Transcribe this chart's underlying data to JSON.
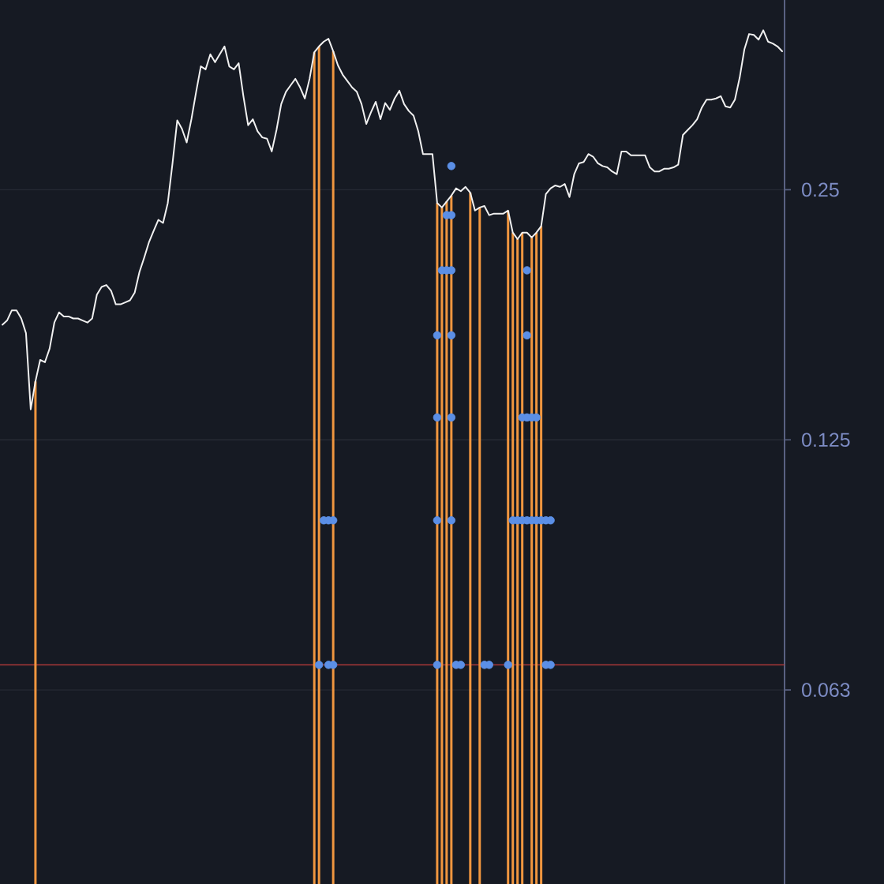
{
  "chart_data": {
    "type": "line",
    "categories": [
      null,
      null,
      null,
      null,
      null,
      null,
      null,
      null,
      null,
      null,
      null,
      null,
      null,
      null,
      null,
      null,
      null,
      null,
      null,
      null,
      null,
      null,
      null,
      null,
      null,
      null,
      null,
      null,
      null,
      null,
      null,
      null,
      null,
      null,
      null,
      null,
      null,
      null,
      null,
      null,
      null,
      null,
      null,
      null,
      null,
      null,
      null,
      null,
      null,
      null,
      null,
      null,
      null,
      null,
      null,
      null,
      null,
      null,
      null,
      null,
      null,
      null,
      null,
      null,
      null,
      null,
      null,
      null,
      null,
      null,
      null,
      null,
      null,
      null,
      null,
      null,
      null,
      null,
      null,
      null,
      null,
      null,
      null,
      null,
      null,
      null,
      null,
      null,
      null,
      null,
      null,
      null,
      null,
      null,
      null,
      null,
      null,
      null,
      null,
      null,
      null,
      null,
      null,
      null,
      null,
      null,
      null,
      null,
      null,
      null,
      null,
      null,
      null,
      null,
      null,
      null,
      null,
      null,
      null,
      null,
      null,
      null,
      null,
      null,
      null,
      null,
      null,
      null,
      null,
      null,
      null,
      null,
      null,
      null,
      null,
      null,
      null,
      null,
      null,
      null,
      null,
      null,
      null,
      null,
      null,
      null,
      null,
      null,
      null,
      null,
      null,
      null,
      null,
      null,
      null,
      null,
      null,
      null,
      null,
      null,
      null,
      null,
      null,
      null,
      null,
      null
    ],
    "series": [
      {
        "type": "bar",
        "color": "#f0963f",
        "values": [
          null,
          null,
          null,
          null,
          null,
          null,
          null,
          0.147,
          null,
          null,
          null,
          null,
          null,
          null,
          null,
          null,
          null,
          null,
          null,
          null,
          null,
          null,
          null,
          null,
          null,
          null,
          null,
          null,
          null,
          null,
          null,
          null,
          null,
          null,
          null,
          null,
          null,
          null,
          null,
          null,
          null,
          null,
          null,
          null,
          null,
          null,
          null,
          null,
          null,
          null,
          null,
          null,
          null,
          null,
          null,
          null,
          null,
          null,
          null,
          null,
          null,
          null,
          null,
          null,
          null,
          null,
          0.366,
          0.372,
          null,
          null,
          0.367,
          null,
          null,
          null,
          null,
          null,
          null,
          null,
          null,
          null,
          null,
          null,
          null,
          null,
          null,
          null,
          null,
          null,
          null,
          null,
          null,
          null,
          0.241,
          0.238,
          0.242,
          0.246,
          null,
          null,
          null,
          0.248,
          null,
          0.238,
          null,
          null,
          null,
          null,
          null,
          0.236,
          0.222,
          0.218,
          0.222,
          null,
          0.219,
          0.222,
          0.226,
          null,
          null,
          null,
          null,
          null,
          null,
          null,
          null,
          null,
          null,
          null,
          null,
          null,
          null,
          null,
          null,
          null,
          null,
          null,
          null,
          null,
          null,
          null,
          null,
          null,
          null,
          null,
          null,
          null,
          null,
          null,
          null,
          null,
          null,
          null,
          null,
          null,
          null,
          null,
          null,
          null,
          null,
          null,
          null,
          null,
          null,
          null,
          null,
          null,
          null,
          null
        ]
      },
      {
        "color": "#f0f0f0",
        "values": [
          0.172,
          0.174,
          0.179,
          0.179,
          0.175,
          0.168,
          0.136,
          0.147,
          0.156,
          0.155,
          0.161,
          0.173,
          0.178,
          0.176,
          0.176,
          0.175,
          0.175,
          0.174,
          0.173,
          0.175,
          0.187,
          0.191,
          0.192,
          0.189,
          0.182,
          0.182,
          0.183,
          0.184,
          0.188,
          0.199,
          0.207,
          0.216,
          0.223,
          0.23,
          0.228,
          0.241,
          0.269,
          0.303,
          0.296,
          0.285,
          0.304,
          0.328,
          0.352,
          0.349,
          0.364,
          0.356,
          0.364,
          0.372,
          0.352,
          0.349,
          0.355,
          0.324,
          0.299,
          0.304,
          0.294,
          0.289,
          0.288,
          0.278,
          0.295,
          0.317,
          0.328,
          0.334,
          0.34,
          0.332,
          0.322,
          0.34,
          0.366,
          0.372,
          0.377,
          0.38,
          0.367,
          0.353,
          0.344,
          0.338,
          0.332,
          0.328,
          0.317,
          0.3,
          0.31,
          0.319,
          0.304,
          0.318,
          0.312,
          0.322,
          0.329,
          0.317,
          0.311,
          0.307,
          0.294,
          0.276,
          0.276,
          0.276,
          0.241,
          0.238,
          0.242,
          0.246,
          0.251,
          0.249,
          0.252,
          0.248,
          0.236,
          0.238,
          0.239,
          0.233,
          0.234,
          0.234,
          0.234,
          0.236,
          0.222,
          0.218,
          0.222,
          0.222,
          0.219,
          0.222,
          0.226,
          0.247,
          0.251,
          0.253,
          0.252,
          0.254,
          0.245,
          0.261,
          0.269,
          0.27,
          0.276,
          0.274,
          0.269,
          0.267,
          0.266,
          0.263,
          0.261,
          0.278,
          0.278,
          0.275,
          0.275,
          0.275,
          0.275,
          0.266,
          0.263,
          0.263,
          0.265,
          0.265,
          0.266,
          0.268,
          0.291,
          0.295,
          0.299,
          0.304,
          0.314,
          0.321,
          0.321,
          0.322,
          0.324,
          0.315,
          0.314,
          0.321,
          0.341,
          0.369,
          0.385,
          0.384,
          0.379,
          0.389,
          0.377,
          0.375,
          0.372,
          0.367
        ]
      },
      {
        "type": "scatter",
        "color": "#5b8fe6",
        "marker": "circle",
        "values": [
          null,
          null,
          null,
          null,
          null,
          null,
          null,
          null,
          null,
          null,
          null,
          null,
          null,
          null,
          null,
          null,
          null,
          null,
          null,
          null,
          null,
          null,
          null,
          null,
          null,
          null,
          null,
          null,
          null,
          null,
          null,
          null,
          null,
          null,
          null,
          null,
          null,
          null,
          null,
          null,
          null,
          null,
          null,
          null,
          null,
          null,
          null,
          null,
          null,
          null,
          null,
          null,
          null,
          null,
          null,
          null,
          null,
          null,
          null,
          null,
          null,
          null,
          null,
          null,
          null,
          null,
          null,
          null,
          null,
          null,
          null,
          null,
          null,
          null,
          null,
          null,
          null,
          null,
          null,
          null,
          null,
          null,
          null,
          null,
          null,
          null,
          null,
          null,
          null,
          null,
          null,
          null,
          null,
          null,
          null,
          0.267,
          null,
          null,
          null,
          null,
          null,
          null,
          null,
          null,
          null,
          null,
          null,
          null,
          null,
          null,
          null,
          null,
          null,
          null,
          null,
          null,
          null,
          null,
          null,
          null,
          null,
          null,
          null,
          null,
          null,
          null,
          null,
          null,
          null,
          null,
          null,
          null,
          null,
          null,
          null,
          null,
          null,
          null,
          null,
          null,
          null,
          null,
          null,
          null,
          null,
          null,
          null,
          null,
          null,
          null,
          null,
          null,
          null,
          null,
          null,
          null,
          null,
          null,
          null,
          null,
          null,
          null,
          null,
          null,
          null,
          null
        ]
      },
      {
        "type": "scatter",
        "color": "#5b8fe6",
        "marker": "circle",
        "values": [
          null,
          null,
          null,
          null,
          null,
          null,
          null,
          null,
          null,
          null,
          null,
          null,
          null,
          null,
          null,
          null,
          null,
          null,
          null,
          null,
          null,
          null,
          null,
          null,
          null,
          null,
          null,
          null,
          null,
          null,
          null,
          null,
          null,
          null,
          null,
          null,
          null,
          null,
          null,
          null,
          null,
          null,
          null,
          null,
          null,
          null,
          null,
          null,
          null,
          null,
          null,
          null,
          null,
          null,
          null,
          null,
          null,
          null,
          null,
          null,
          null,
          null,
          null,
          null,
          null,
          null,
          null,
          null,
          null,
          null,
          null,
          null,
          null,
          null,
          null,
          null,
          null,
          null,
          null,
          null,
          null,
          null,
          null,
          null,
          null,
          null,
          null,
          null,
          null,
          null,
          null,
          null,
          null,
          null,
          0.233,
          0.233,
          null,
          null,
          null,
          null,
          null,
          null,
          null,
          null,
          null,
          null,
          null,
          null,
          null,
          null,
          null,
          null,
          null,
          null,
          null,
          null,
          null,
          null,
          null,
          null,
          null,
          null,
          null,
          null,
          null,
          null,
          null,
          null,
          null,
          null,
          null,
          null,
          null,
          null,
          null,
          null,
          null,
          null,
          null,
          null,
          null,
          null,
          null,
          null,
          null,
          null,
          null,
          null,
          null,
          null,
          null,
          null,
          null,
          null,
          null,
          null,
          null,
          null,
          null,
          null,
          null,
          null,
          null,
          null,
          null,
          null
        ]
      },
      {
        "type": "scatter",
        "color": "#5b8fe6",
        "marker": "circle",
        "values": [
          null,
          null,
          null,
          null,
          null,
          null,
          null,
          null,
          null,
          null,
          null,
          null,
          null,
          null,
          null,
          null,
          null,
          null,
          null,
          null,
          null,
          null,
          null,
          null,
          null,
          null,
          null,
          null,
          null,
          null,
          null,
          null,
          null,
          null,
          null,
          null,
          null,
          null,
          null,
          null,
          null,
          null,
          null,
          null,
          null,
          null,
          null,
          null,
          null,
          null,
          null,
          null,
          null,
          null,
          null,
          null,
          null,
          null,
          null,
          null,
          null,
          null,
          null,
          null,
          null,
          null,
          null,
          null,
          null,
          null,
          null,
          null,
          null,
          null,
          null,
          null,
          null,
          null,
          null,
          null,
          null,
          null,
          null,
          null,
          null,
          null,
          null,
          null,
          null,
          null,
          null,
          null,
          null,
          0.2,
          0.2,
          0.2,
          null,
          null,
          null,
          null,
          null,
          null,
          null,
          null,
          null,
          null,
          null,
          null,
          null,
          null,
          null,
          0.2,
          null,
          null,
          null,
          null,
          null,
          null,
          null,
          null,
          null,
          null,
          null,
          null,
          null,
          null,
          null,
          null,
          null,
          null,
          null,
          null,
          null,
          null,
          null,
          null,
          null,
          null,
          null,
          null,
          null,
          null,
          null,
          null,
          null,
          null,
          null,
          null,
          null,
          null,
          null,
          null,
          null,
          null,
          null,
          null,
          null,
          null,
          null,
          null,
          null,
          null,
          null,
          null,
          null,
          null
        ]
      },
      {
        "type": "scatter",
        "color": "#5b8fe6",
        "marker": "circle",
        "values": [
          null,
          null,
          null,
          null,
          null,
          null,
          null,
          null,
          null,
          null,
          null,
          null,
          null,
          null,
          null,
          null,
          null,
          null,
          null,
          null,
          null,
          null,
          null,
          null,
          null,
          null,
          null,
          null,
          null,
          null,
          null,
          null,
          null,
          null,
          null,
          null,
          null,
          null,
          null,
          null,
          null,
          null,
          null,
          null,
          null,
          null,
          null,
          null,
          null,
          null,
          null,
          null,
          null,
          null,
          null,
          null,
          null,
          null,
          null,
          null,
          null,
          null,
          null,
          null,
          null,
          null,
          null,
          null,
          null,
          null,
          null,
          null,
          null,
          null,
          null,
          null,
          null,
          null,
          null,
          null,
          null,
          null,
          null,
          null,
          null,
          null,
          null,
          null,
          null,
          null,
          null,
          null,
          0.167,
          null,
          null,
          0.167,
          null,
          null,
          null,
          null,
          null,
          null,
          null,
          null,
          null,
          null,
          null,
          null,
          null,
          null,
          null,
          0.167,
          null,
          null,
          null,
          null,
          null,
          null,
          null,
          null,
          null,
          null,
          null,
          null,
          null,
          null,
          null,
          null,
          null,
          null,
          null,
          null,
          null,
          null,
          null,
          null,
          null,
          null,
          null,
          null,
          null,
          null,
          null,
          null,
          null,
          null,
          null,
          null,
          null,
          null,
          null,
          null,
          null,
          null,
          null,
          null,
          null,
          null,
          null,
          null,
          null,
          null,
          null,
          null,
          null,
          null
        ]
      },
      {
        "type": "scatter",
        "color": "#5b8fe6",
        "marker": "circle",
        "values": [
          null,
          null,
          null,
          null,
          null,
          null,
          null,
          null,
          null,
          null,
          null,
          null,
          null,
          null,
          null,
          null,
          null,
          null,
          null,
          null,
          null,
          null,
          null,
          null,
          null,
          null,
          null,
          null,
          null,
          null,
          null,
          null,
          null,
          null,
          null,
          null,
          null,
          null,
          null,
          null,
          null,
          null,
          null,
          null,
          null,
          null,
          null,
          null,
          null,
          null,
          null,
          null,
          null,
          null,
          null,
          null,
          null,
          null,
          null,
          null,
          null,
          null,
          null,
          null,
          null,
          null,
          null,
          null,
          null,
          null,
          null,
          null,
          null,
          null,
          null,
          null,
          null,
          null,
          null,
          null,
          null,
          null,
          null,
          null,
          null,
          null,
          null,
          null,
          null,
          null,
          null,
          null,
          0.133,
          null,
          null,
          0.133,
          null,
          null,
          null,
          null,
          null,
          null,
          null,
          null,
          null,
          null,
          null,
          null,
          null,
          null,
          0.133,
          0.133,
          0.133,
          0.133,
          null,
          null,
          null,
          null,
          null,
          null,
          null,
          null,
          null,
          null,
          null,
          null,
          null,
          null,
          null,
          null,
          null,
          null,
          null,
          null,
          null,
          null,
          null,
          null,
          null,
          null,
          null,
          null,
          null,
          null,
          null,
          null,
          null,
          null,
          null,
          null,
          null,
          null,
          null,
          null,
          null,
          null,
          null,
          null,
          null,
          null,
          null,
          null,
          null,
          null,
          null,
          null
        ]
      },
      {
        "type": "scatter",
        "color": "#5b8fe6",
        "marker": "circle",
        "values": [
          null,
          null,
          null,
          null,
          null,
          null,
          null,
          null,
          null,
          null,
          null,
          null,
          null,
          null,
          null,
          null,
          null,
          null,
          null,
          null,
          null,
          null,
          null,
          null,
          null,
          null,
          null,
          null,
          null,
          null,
          null,
          null,
          null,
          null,
          null,
          null,
          null,
          null,
          null,
          null,
          null,
          null,
          null,
          null,
          null,
          null,
          null,
          null,
          null,
          null,
          null,
          null,
          null,
          null,
          null,
          null,
          null,
          null,
          null,
          null,
          null,
          null,
          null,
          null,
          null,
          null,
          null,
          null,
          0.1,
          0.1,
          0.1,
          null,
          null,
          null,
          null,
          null,
          null,
          null,
          null,
          null,
          null,
          null,
          null,
          null,
          null,
          null,
          null,
          null,
          null,
          null,
          null,
          null,
          0.1,
          null,
          null,
          0.1,
          null,
          null,
          null,
          null,
          null,
          null,
          null,
          null,
          null,
          null,
          null,
          null,
          0.1,
          0.1,
          0.1,
          0.1,
          0.1,
          0.1,
          0.1,
          0.1,
          0.1,
          null,
          null,
          null,
          null,
          null,
          null,
          null,
          null,
          null,
          null,
          null,
          null,
          null,
          null,
          null,
          null,
          null,
          null,
          null,
          null,
          null,
          null,
          null,
          null,
          null,
          null,
          null,
          null,
          null,
          null,
          null,
          null,
          null,
          null,
          null,
          null,
          null,
          null,
          null,
          null,
          null,
          null,
          null,
          null,
          null,
          null,
          null,
          null,
          null
        ]
      },
      {
        "type": "scatter",
        "color": "#5b8fe6",
        "marker": "circle",
        "values": [
          null,
          null,
          null,
          null,
          null,
          null,
          null,
          null,
          null,
          null,
          null,
          null,
          null,
          null,
          null,
          null,
          null,
          null,
          null,
          null,
          null,
          null,
          null,
          null,
          null,
          null,
          null,
          null,
          null,
          null,
          null,
          null,
          null,
          null,
          null,
          null,
          null,
          null,
          null,
          null,
          null,
          null,
          null,
          null,
          null,
          null,
          null,
          null,
          null,
          null,
          null,
          null,
          null,
          null,
          null,
          null,
          null,
          null,
          null,
          null,
          null,
          null,
          null,
          null,
          null,
          null,
          null,
          0.067,
          null,
          0.067,
          0.067,
          null,
          null,
          null,
          null,
          null,
          null,
          null,
          null,
          null,
          null,
          null,
          null,
          null,
          null,
          null,
          null,
          null,
          null,
          null,
          null,
          null,
          0.067,
          null,
          null,
          null,
          0.067,
          0.067,
          null,
          null,
          null,
          null,
          0.067,
          0.067,
          null,
          null,
          null,
          0.067,
          null,
          null,
          null,
          null,
          null,
          null,
          null,
          0.067,
          0.067,
          null,
          null,
          null,
          null,
          null,
          null,
          null,
          null,
          null,
          null,
          null,
          null,
          null,
          null,
          null,
          null,
          null,
          null,
          null,
          null,
          null,
          null,
          null,
          null,
          null,
          null,
          null,
          null,
          null,
          null,
          null,
          null,
          null,
          null,
          null,
          null,
          null,
          null,
          null,
          null,
          null,
          null,
          null,
          null,
          null,
          null,
          null,
          null,
          null
        ]
      }
    ],
    "ylim": [
      0.0365,
      0.423
    ],
    "yticks": [
      {
        "value": 0.0625,
        "label": "0.063"
      },
      0.125,
      0.25
    ],
    "log": "y",
    "grid": "y",
    "tick_labels": "y",
    "ref_lines": [
      {
        "axis": "y",
        "value": 0.067,
        "color": "#b03a3a"
      }
    ]
  }
}
